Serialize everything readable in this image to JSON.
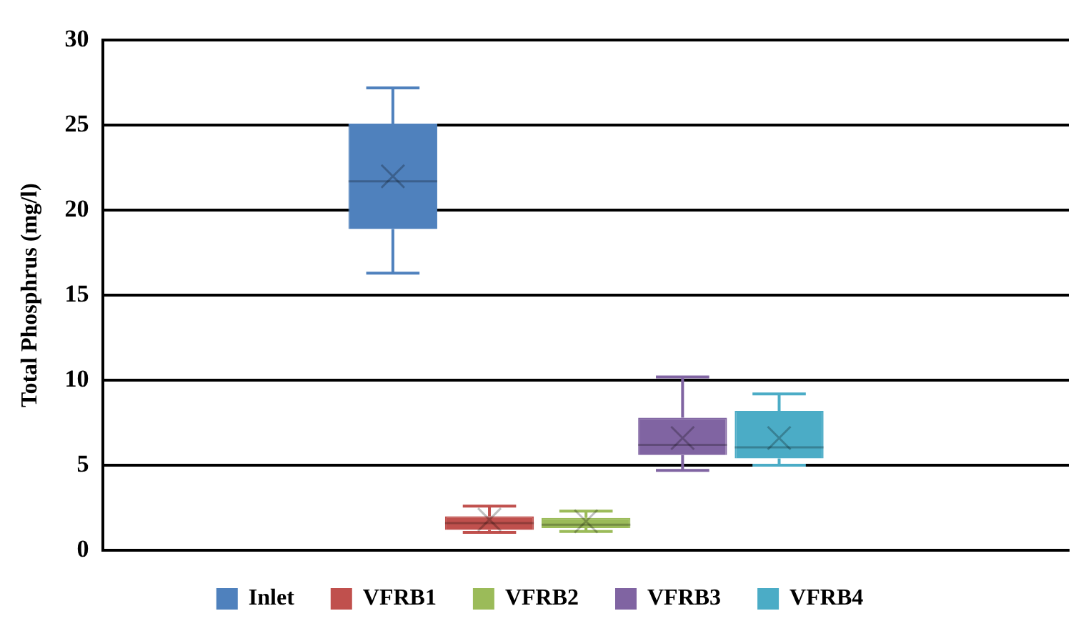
{
  "chart_data": {
    "type": "box",
    "ylabel": "Total Phosphrus (mg/l)",
    "categories": [
      null
    ],
    "ylim": [
      0,
      30
    ],
    "yticks": [
      0,
      5,
      10,
      15,
      20,
      25,
      30
    ],
    "grid": "y",
    "legend": "bottom",
    "series": [
      {
        "name": "Inlet",
        "color": "#4f81bd",
        "boxes": [
          {
            "low": 16.3,
            "q1": 18.9,
            "median": 21.7,
            "q3": 25.1,
            "high": 27.2,
            "mean": 22
          }
        ]
      },
      {
        "name": "VFRB1",
        "color": "#c0504d",
        "boxes": [
          {
            "low": 1.05,
            "q1": 1.2,
            "median": 1.6,
            "q3": 2.0,
            "high": 2.6,
            "mean": 1.8
          }
        ]
      },
      {
        "name": "VFRB2",
        "color": "#9bbb59",
        "boxes": [
          {
            "low": 1.1,
            "q1": 1.3,
            "median": 1.5,
            "q3": 1.9,
            "high": 2.3,
            "mean": 1.7
          }
        ]
      },
      {
        "name": "VFRB3",
        "color": "#8064a2",
        "boxes": [
          {
            "low": 4.7,
            "q1": 5.6,
            "median": 6.2,
            "q3": 7.8,
            "high": 10.2,
            "mean": 6.6
          }
        ]
      },
      {
        "name": "VFRB4",
        "color": "#4bacc6",
        "boxes": [
          {
            "low": 5.0,
            "q1": 5.4,
            "median": 6.05,
            "q3": 8.2,
            "high": 9.2,
            "mean": 6.6
          }
        ]
      }
    ]
  }
}
